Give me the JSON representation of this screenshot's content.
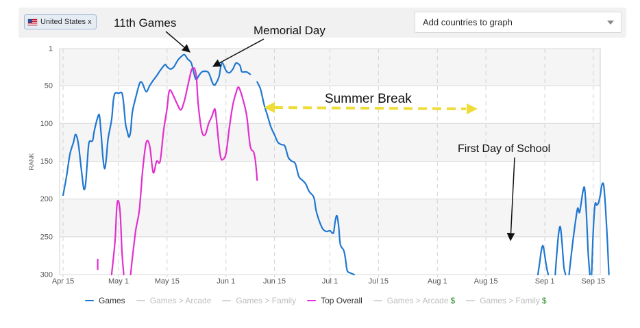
{
  "filter_bar": {
    "country_tag": {
      "label": "United States x",
      "icon": "us-flag-icon"
    },
    "add_countries": {
      "placeholder": "Add countries to graph",
      "icon": "chevron-down-icon"
    }
  },
  "legend": [
    {
      "label": "Games",
      "active": true,
      "color": "#1f77d0",
      "suffix": ""
    },
    {
      "label": "Games > Arcade",
      "active": false,
      "color": "#d4d4d4",
      "suffix": ""
    },
    {
      "label": "Games > Family",
      "active": false,
      "color": "#d4d4d4",
      "suffix": ""
    },
    {
      "label": "Top Overall",
      "active": true,
      "color": "#e22fcf",
      "suffix": ""
    },
    {
      "label": "Games > Arcade",
      "active": false,
      "color": "#d4d4d4",
      "suffix": "$"
    },
    {
      "label": "Games > Family",
      "active": false,
      "color": "#d4d4d4",
      "suffix": "$"
    }
  ],
  "chart_data": {
    "type": "line",
    "ylabel": "RANK",
    "y_reversed": true,
    "ylim": [
      1,
      300
    ],
    "y_ticks": [
      "1",
      "50",
      "100",
      "150",
      "200",
      "250",
      "300"
    ],
    "x_ticks": [
      "Apr 15",
      "May 1",
      "May 15",
      "Jun 1",
      "Jun 15",
      "Jul 1",
      "Jul 15",
      "Aug 1",
      "Aug 15",
      "Sep 1",
      "Sep 15"
    ],
    "x_tick_days": [
      0,
      16,
      30,
      47,
      61,
      77,
      91,
      108,
      122,
      139,
      153
    ],
    "xlim": [
      -1,
      155
    ],
    "grid": "horizontal bands, dashed vertical at ticks",
    "series": [
      {
        "name": "Games",
        "color": "#1f77d0",
        "segments": [
          [
            [
              0,
              195
            ],
            [
              1,
              170
            ],
            [
              2,
              140
            ],
            [
              3,
              125
            ],
            [
              3.5,
              115
            ],
            [
              4,
              118
            ],
            [
              4.5,
              130
            ],
            [
              5,
              150
            ],
            [
              5.5,
              170
            ],
            [
              6,
              187
            ],
            [
              6.5,
              180
            ],
            [
              7,
              150
            ],
            [
              7.5,
              125
            ],
            [
              8.5,
              123
            ],
            [
              9,
              110
            ],
            [
              10,
              92
            ],
            [
              10.5,
              90
            ],
            [
              11,
              115
            ],
            [
              11.5,
              145
            ],
            [
              12,
              160
            ],
            [
              12.5,
              145
            ],
            [
              13,
              120
            ],
            [
              14,
              95
            ],
            [
              14.5,
              70
            ],
            [
              15,
              60
            ],
            [
              16,
              60
            ],
            [
              17,
              60
            ],
            [
              17.5,
              75
            ],
            [
              18,
              100
            ],
            [
              18.5,
              110
            ],
            [
              19,
              118
            ],
            [
              19.5,
              110
            ],
            [
              20,
              85
            ],
            [
              21,
              65
            ],
            [
              22,
              48
            ],
            [
              22.5,
              45
            ],
            [
              23,
              48
            ],
            [
              24,
              58
            ],
            [
              25,
              50
            ],
            [
              26,
              43
            ],
            [
              27,
              37
            ],
            [
              28,
              30
            ],
            [
              29,
              24
            ],
            [
              29.5,
              22
            ],
            [
              30,
              25
            ],
            [
              31,
              28
            ],
            [
              32,
              25
            ],
            [
              33,
              17
            ],
            [
              34,
              12
            ],
            [
              35,
              9
            ],
            [
              36,
              15
            ],
            [
              37,
              20
            ],
            [
              38,
              38
            ],
            [
              38.5,
              42
            ],
            [
              39,
              38
            ],
            [
              40,
              32
            ],
            [
              41,
              31
            ],
            [
              42,
              33
            ],
            [
              43,
              45
            ],
            [
              43.5,
              49
            ],
            [
              44,
              48
            ],
            [
              45,
              38
            ],
            [
              45.5,
              25
            ],
            [
              46,
              20
            ],
            [
              47,
              30
            ],
            [
              48,
              33
            ],
            [
              49,
              28
            ],
            [
              49.5,
              23
            ],
            [
              50,
              20
            ],
            [
              51,
              23
            ],
            [
              51.5,
              31
            ],
            [
              52,
              32
            ],
            [
              53,
              32
            ],
            [
              54,
              35
            ]
          ],
          [
            [
              56,
              45
            ],
            [
              57,
              55
            ],
            [
              58,
              75
            ],
            [
              59,
              90
            ],
            [
              60,
              105
            ],
            [
              61,
              115
            ],
            [
              62,
              125
            ],
            [
              63,
              128
            ],
            [
              64,
              130
            ],
            [
              65,
              145
            ],
            [
              66,
              150
            ],
            [
              67,
              153
            ],
            [
              68,
              170
            ],
            [
              69,
              175
            ],
            [
              70,
              180
            ],
            [
              71,
              190
            ],
            [
              72,
              195
            ],
            [
              72.5,
              200
            ],
            [
              73,
              215
            ],
            [
              74,
              230
            ],
            [
              75,
              240
            ],
            [
              76,
              243
            ],
            [
              77,
              242
            ],
            [
              78,
              245
            ],
            [
              78.5,
              230
            ],
            [
              79,
              222
            ],
            [
              79.5,
              235
            ],
            [
              80,
              260
            ],
            [
              81,
              268
            ],
            [
              81.5,
              280
            ],
            [
              82,
              295
            ],
            [
              83,
              298
            ],
            [
              84,
              300
            ]
          ],
          [
            [
              137,
              300
            ],
            [
              137.5,
              285
            ],
            [
              138,
              268
            ],
            [
              138.5,
              262
            ],
            [
              139,
              275
            ],
            [
              139.5,
              290
            ],
            [
              140,
              300
            ]
          ],
          [
            [
              142,
              300
            ],
            [
              142.5,
              270
            ],
            [
              143,
              245
            ],
            [
              143.5,
              237
            ],
            [
              144,
              260
            ],
            [
              144.5,
              290
            ],
            [
              145,
              300
            ]
          ],
          [
            [
              146,
              300
            ],
            [
              147,
              260
            ],
            [
              148,
              225
            ],
            [
              148.5,
              212
            ],
            [
              149,
              218
            ],
            [
              149.5,
              205
            ],
            [
              150,
              190
            ],
            [
              150.5,
              186
            ],
            [
              151,
              220
            ],
            [
              151.5,
              270
            ],
            [
              152,
              300
            ]
          ],
          [
            [
              152.5,
              300
            ],
            [
              153,
              240
            ],
            [
              153.5,
              207
            ],
            [
              154,
              208
            ],
            [
              154.5,
              205
            ],
            [
              155,
              195
            ],
            [
              155.5,
              181
            ],
            [
              156,
              182
            ],
            [
              156.5,
              210
            ],
            [
              157,
              250
            ],
            [
              157.5,
              300
            ]
          ]
        ]
      },
      {
        "name": "Top Overall",
        "color": "#e22fcf",
        "segments": [
          [
            [
              10,
              280
            ],
            [
              10,
              293
            ]
          ],
          [
            [
              14,
              300
            ],
            [
              15,
              255
            ],
            [
              15.5,
              210
            ],
            [
              16,
              203
            ],
            [
              16.5,
              220
            ],
            [
              17,
              270
            ],
            [
              17.5,
              300
            ]
          ],
          [
            [
              19.5,
              300
            ],
            [
              20,
              278
            ],
            [
              21,
              240
            ],
            [
              22,
              215
            ],
            [
              23,
              160
            ],
            [
              24,
              125
            ],
            [
              25,
              130
            ],
            [
              26,
              165
            ],
            [
              27,
              150
            ],
            [
              28,
              150
            ],
            [
              29,
              110
            ],
            [
              30,
              80
            ],
            [
              30.5,
              60
            ],
            [
              31,
              56
            ],
            [
              32,
              65
            ],
            [
              33,
              75
            ],
            [
              34,
              82
            ],
            [
              35,
              70
            ],
            [
              36,
              50
            ],
            [
              37,
              30
            ],
            [
              37.5,
              27
            ],
            [
              38,
              28
            ],
            [
              38.5,
              40
            ],
            [
              39,
              75
            ],
            [
              40,
              110
            ],
            [
              41,
              115
            ],
            [
              42,
              100
            ],
            [
              43,
              90
            ],
            [
              43.5,
              83
            ],
            [
              44,
              85
            ],
            [
              45,
              130
            ],
            [
              45.5,
              145
            ],
            [
              46,
              148
            ],
            [
              47,
              140
            ],
            [
              48,
              105
            ],
            [
              49,
              75
            ],
            [
              50,
              58
            ],
            [
              50.5,
              52
            ],
            [
              51,
              55
            ],
            [
              52,
              70
            ],
            [
              53,
              90
            ],
            [
              54,
              130
            ],
            [
              55,
              138
            ],
            [
              55.5,
              150
            ],
            [
              56,
              175
            ]
          ]
        ]
      }
    ],
    "annotations": [
      {
        "text": "11th Games"
      },
      {
        "text": "Memorial Day"
      },
      {
        "text": "Summer Break"
      },
      {
        "text": "First Day of School"
      }
    ]
  }
}
